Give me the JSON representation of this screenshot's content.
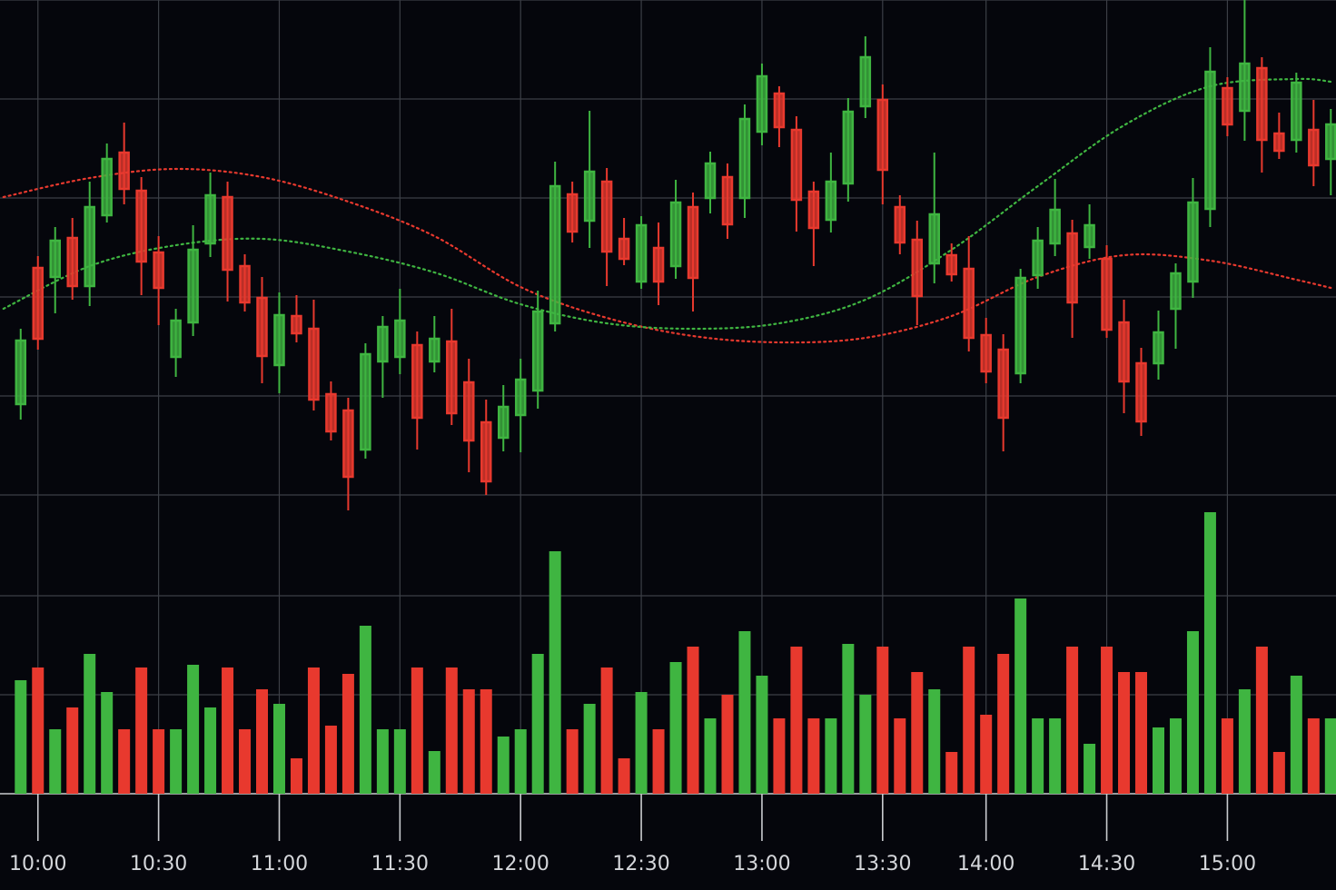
{
  "chart_data": [
    {
      "type": "candlestick",
      "x": [
        0,
        1,
        2,
        3,
        4,
        5,
        6,
        7,
        8,
        9,
        10,
        11,
        12,
        13,
        14,
        15,
        16,
        17,
        18,
        19,
        20,
        21,
        22,
        23,
        24,
        25,
        26,
        27,
        28,
        29,
        30,
        31,
        32,
        33,
        34,
        35,
        36,
        37,
        38,
        39,
        40,
        41,
        42,
        43,
        44,
        45,
        46,
        47,
        48,
        49,
        50,
        51,
        52,
        53,
        54,
        55,
        56,
        57,
        58,
        59,
        60,
        61,
        62,
        63,
        64,
        65,
        66,
        67,
        68,
        69,
        70,
        71,
        72,
        73,
        74,
        75,
        76
      ],
      "open": [
        55.5,
        70.5,
        69.5,
        73.8,
        68.5,
        76.3,
        83.2,
        79,
        72.2,
        60.7,
        64.5,
        73.2,
        78.3,
        70.7,
        67.2,
        59.8,
        65.2,
        63.8,
        56.6,
        54.8,
        50.5,
        60.2,
        60.7,
        62,
        60.2,
        62.4,
        57.9,
        53.5,
        51.8,
        54.3,
        57,
        64.4,
        78.6,
        75.7,
        80,
        73.7,
        69,
        72.7,
        70.7,
        77.2,
        78.2,
        80.5,
        78.2,
        85.5,
        89.7,
        85.7,
        78.9,
        75.8,
        79.8,
        88.3,
        89,
        77.2,
        73.6,
        71,
        71.9,
        70.4,
        63.1,
        61.5,
        58.9,
        69.7,
        73.2,
        74.3,
        72.8,
        71.5,
        64.5,
        60,
        60,
        66,
        69,
        77,
        90.3,
        87.8,
        92.5,
        85.3,
        84.6,
        85.7,
        82.5
      ],
      "high": [
        63.8,
        71.8,
        75,
        76,
        80,
        84.2,
        86.5,
        80.5,
        74,
        66,
        75.2,
        81,
        80,
        72,
        69.5,
        67.8,
        67.5,
        67,
        58,
        56.2,
        62.2,
        65.2,
        68.2,
        63.5,
        65.2,
        66,
        60.5,
        56,
        57.6,
        60.5,
        68,
        82.2,
        80,
        87.8,
        81.5,
        76,
        76.2,
        75.5,
        80.2,
        78.8,
        83.3,
        82,
        88.5,
        93,
        90.5,
        87.2,
        80,
        83.2,
        89.2,
        96,
        90.7,
        78.5,
        75.7,
        83.2,
        73.2,
        74,
        65,
        63.2,
        70.4,
        75,
        80.3,
        75.8,
        77.5,
        73,
        67,
        61.7,
        65.8,
        71,
        80.4,
        94.8,
        91.5,
        100,
        93.7,
        87.6,
        92,
        89,
        88
      ],
      "low": [
        53.8,
        61.5,
        65.5,
        67,
        66.3,
        75.5,
        77.5,
        67.5,
        64.2,
        58.5,
        63,
        71.7,
        66.8,
        65.7,
        57.8,
        56.7,
        62.3,
        54.8,
        51.5,
        43.8,
        49.5,
        56.2,
        58.8,
        50.5,
        59,
        53.2,
        48,
        45.5,
        50.3,
        50.2,
        55,
        63.5,
        73.3,
        72.7,
        68.5,
        70.8,
        68.2,
        66.4,
        69.3,
        65.7,
        76.5,
        73.7,
        76,
        84,
        83.8,
        74.5,
        70.7,
        74.4,
        77.8,
        87,
        77.5,
        72,
        64.2,
        68.8,
        69,
        61.3,
        57.8,
        50.3,
        57.8,
        68.2,
        71.8,
        62.8,
        71.5,
        62.8,
        54.5,
        52,
        58.2,
        61.6,
        67.2,
        75,
        85,
        84.5,
        81,
        82.5,
        83.2,
        79.5,
        78.5
      ],
      "close": [
        62.5,
        62.7,
        73.5,
        68.5,
        77.2,
        82.5,
        79.2,
        71.2,
        68.3,
        64.7,
        72.5,
        78.5,
        70.3,
        66.7,
        60.8,
        65.3,
        63.3,
        56,
        52.5,
        47.5,
        61,
        64,
        64.7,
        54,
        62.7,
        54.5,
        51.5,
        47,
        55.2,
        58.2,
        65.7,
        79.5,
        74.5,
        81.1,
        72.3,
        71.5,
        75.2,
        69,
        77.7,
        69.4,
        82,
        75.3,
        86.9,
        91.6,
        86,
        78,
        74.9,
        80,
        87.7,
        93.7,
        81.3,
        73.3,
        67.4,
        76.4,
        69.8,
        62.8,
        59.1,
        54,
        69.4,
        73.5,
        76.9,
        66.7,
        75.2,
        63.7,
        58,
        53.6,
        63.4,
        69.9,
        77.7,
        92.1,
        86.3,
        93,
        84.6,
        83.4,
        90.9,
        81.8,
        86.3
      ],
      "up_color": "#3fb541",
      "down_color": "#e8392e",
      "overlays": [
        {
          "type": "line",
          "style": "dotted",
          "color": "#e8392e",
          "x": [
            -1,
            4,
            9,
            14,
            19,
            24,
            29,
            34,
            39,
            44,
            49,
            54,
            59,
            64,
            69,
            74,
            76
          ],
          "values": [
            78.3,
            80.4,
            81.4,
            80.5,
            77.8,
            74,
            68.4,
            65,
            63,
            62.3,
            62.8,
            65.2,
            69.5,
            71.9,
            71.3,
            69.2,
            68.3
          ]
        },
        {
          "type": "line",
          "style": "dotted",
          "color": "#3fb541",
          "x": [
            -1,
            4,
            9,
            14,
            19,
            24,
            29,
            34,
            39,
            44,
            49,
            54,
            59,
            64,
            69,
            74,
            76
          ],
          "values": [
            66,
            70.7,
            73,
            73.7,
            72.3,
            70,
            66.5,
            64.4,
            63.8,
            64.4,
            67,
            72.5,
            79.5,
            86.2,
            90.5,
            91.3,
            91
          ]
        }
      ],
      "xlim": [
        -1.2,
        76.3
      ],
      "ylim": [
        40,
        100
      ],
      "yticks": [
        100,
        89.1,
        78.2,
        67.3,
        56.4,
        45.5
      ],
      "grid": true
    },
    {
      "type": "bar",
      "x": [
        0,
        1,
        2,
        3,
        4,
        5,
        6,
        7,
        8,
        9,
        10,
        11,
        12,
        13,
        14,
        15,
        16,
        17,
        18,
        19,
        20,
        21,
        22,
        23,
        24,
        25,
        26,
        27,
        28,
        29,
        30,
        31,
        32,
        33,
        34,
        35,
        36,
        37,
        38,
        39,
        40,
        41,
        42,
        43,
        44,
        45,
        46,
        47,
        48,
        49,
        50,
        51,
        52,
        53,
        54,
        55,
        56,
        57,
        58,
        59,
        60,
        61,
        62,
        63,
        64,
        65,
        66,
        67,
        68,
        69,
        70,
        71,
        72,
        73,
        74,
        75,
        76
      ],
      "values": [
        12.5,
        13.9,
        7.1,
        9.5,
        15.4,
        11.2,
        7.1,
        13.9,
        7.1,
        7.1,
        14.2,
        9.5,
        13.9,
        7.1,
        11.5,
        9.9,
        3.9,
        13.9,
        7.5,
        13.2,
        18.5,
        7.1,
        7.1,
        13.9,
        4.7,
        13.9,
        11.5,
        11.5,
        6.3,
        7.1,
        15.4,
        26.7,
        7.1,
        9.9,
        13.9,
        3.9,
        11.2,
        7.1,
        14.5,
        16.2,
        8.3,
        10.9,
        17.9,
        13,
        8.3,
        16.2,
        8.3,
        8.3,
        16.5,
        10.9,
        16.2,
        8.3,
        13.4,
        11.5,
        4.6,
        16.2,
        8.7,
        15.4,
        21.5,
        8.3,
        8.3,
        16.2,
        5.5,
        16.2,
        13.4,
        13.4,
        7.3,
        8.3,
        17.9,
        31,
        8.3,
        11.5,
        16.2,
        4.6,
        13,
        8.3,
        8.3
      ],
      "xlim": [
        -1.2,
        76.3
      ],
      "xticks": [
        {
          "value": 1,
          "label": "10:00"
        },
        {
          "value": 8,
          "label": "10:30"
        },
        {
          "value": 15,
          "label": "11:00"
        },
        {
          "value": 22,
          "label": "11:30"
        },
        {
          "value": 29,
          "label": "12:00"
        },
        {
          "value": 36,
          "label": "12:30"
        },
        {
          "value": 43,
          "label": "13:00"
        },
        {
          "value": 50,
          "label": "13:30"
        },
        {
          "value": 56,
          "label": "14:00"
        },
        {
          "value": 63,
          "label": "14:30"
        },
        {
          "value": 70,
          "label": "15:00"
        }
      ],
      "ylim": [
        0,
        32.7
      ],
      "yticks": [
        0,
        10.9,
        21.8
      ],
      "grid": true
    }
  ]
}
